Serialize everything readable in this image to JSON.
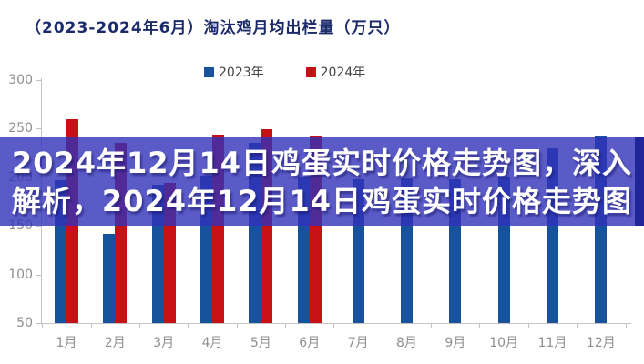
{
  "page": {
    "background_color": "#ffffff"
  },
  "header": {
    "title": "（2023-2024年6月）淘汰鸡月均出栏量（万只）",
    "title_color": "#1b2a6b"
  },
  "legend": {
    "items": [
      {
        "label": "2023年",
        "color": "#17539d"
      },
      {
        "label": "2024年",
        "color": "#c81114"
      }
    ]
  },
  "overlay": {
    "line1": "2024年12月14日鸡蛋实时价格走势图，深入",
    "line2": "解析，2024年12月14日鸡蛋实时价格走势图",
    "text_color": "#ffffff",
    "band_color": "#3232b9",
    "band_opacity": 0.8,
    "right_accent_color": "#20269a"
  },
  "chart_data": {
    "type": "bar",
    "title": "（2023-2024年6月）淘汰鸡月均出栏量（万只）",
    "unit": "万只",
    "categories": [
      "1月",
      "2月",
      "3月",
      "4月",
      "5月",
      "6月",
      "7月",
      "8月",
      "9月",
      "10月",
      "11月",
      "12月"
    ],
    "series": [
      {
        "name": "2023年",
        "color": "#17539d",
        "values": [
          197,
          142,
          192,
          202,
          235,
          200,
          198,
          199,
          198,
          200,
          230,
          242
        ]
      },
      {
        "name": "2024年",
        "color": "#c81114",
        "values": [
          260,
          235,
          194,
          244,
          249,
          243,
          null,
          null,
          null,
          null,
          null,
          null
        ]
      }
    ],
    "ylim": [
      50,
      300
    ],
    "yticks": [
      50,
      100,
      150,
      200,
      250,
      300
    ],
    "grid": false,
    "legend_position": "top-center",
    "xlabel": "",
    "ylabel": ""
  }
}
